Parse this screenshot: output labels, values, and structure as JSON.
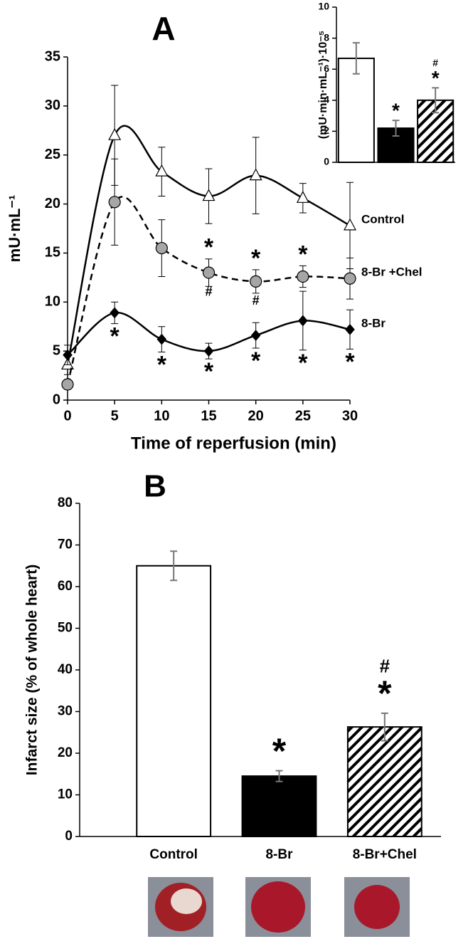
{
  "chart_data": [
    {
      "type": "line",
      "title": "A",
      "x_label": "Time of reperfusion (min)",
      "y_label": "mU·mL⁻¹",
      "x": [
        0,
        5,
        10,
        15,
        20,
        25,
        30
      ],
      "xlim": [
        0,
        30
      ],
      "xticks": [
        0,
        5,
        10,
        15,
        20,
        25,
        30
      ],
      "ylim": [
        0,
        35
      ],
      "yticks": [
        0,
        5,
        10,
        15,
        20,
        25,
        30,
        35
      ],
      "series": [
        {
          "name": "Control",
          "marker": "triangle",
          "color": "#ffffff",
          "dash": false,
          "values": [
            3.6,
            27,
            23.3,
            20.8,
            22.9,
            20.6,
            17.8
          ],
          "errors": [
            1,
            5.1,
            2.5,
            2.8,
            3.9,
            1.5,
            4.4
          ],
          "annotations_above": [
            null,
            null,
            null,
            null,
            null,
            null,
            null
          ],
          "annotations_below": [
            null,
            null,
            null,
            null,
            null,
            null,
            null
          ]
        },
        {
          "name": "8-Br +Chel",
          "marker": "circle",
          "color": "#a6a6a6",
          "dash": true,
          "values": [
            1.6,
            20.2,
            15.5,
            13.0,
            12.1,
            12.6,
            12.4
          ],
          "errors": [
            0.5,
            4.4,
            2.9,
            1.4,
            1.2,
            1.1,
            2.1
          ],
          "annotations_above": [
            null,
            null,
            null,
            "*",
            "*",
            "*",
            null
          ],
          "annotations_below": [
            null,
            null,
            null,
            "#",
            "#",
            null,
            null
          ]
        },
        {
          "name": "8-Br",
          "marker": "diamond",
          "color": "#000000",
          "dash": false,
          "values": [
            4.6,
            8.9,
            6.2,
            5.0,
            6.6,
            8.1,
            7.2
          ],
          "errors": [
            1,
            1.1,
            1.3,
            0.8,
            1.3,
            3.0,
            2.0
          ],
          "annotations_above": [
            null,
            null,
            null,
            null,
            null,
            null,
            null
          ],
          "annotations_below": [
            null,
            "*",
            "*",
            "*",
            "*",
            "*",
            "*"
          ]
        }
      ]
    },
    {
      "type": "bar",
      "y_label": "(mU·min·mL⁻¹)·10⁻⁵",
      "categories": [
        null,
        null,
        null
      ],
      "values": [
        6.7,
        2.2,
        4.0
      ],
      "errors": [
        1.0,
        0.5,
        0.8
      ],
      "colors": [
        "#ffffff",
        "#000000",
        "#ffffff"
      ],
      "hatch": [
        false,
        false,
        true
      ],
      "annotations": [
        [],
        [
          "*"
        ],
        [
          "*",
          "#"
        ]
      ],
      "ylim": [
        0,
        10
      ],
      "yticks": [
        0,
        2,
        4,
        6,
        8,
        10
      ]
    },
    {
      "type": "bar",
      "title": "B",
      "y_label": "Infarct size (% of whole heart)",
      "categories": [
        "Control",
        "8-Br",
        "8-Br+Chel"
      ],
      "values": [
        65,
        14.5,
        26.3
      ],
      "errors": [
        3.5,
        1.3,
        3.3
      ],
      "colors": [
        "#ffffff",
        "#000000",
        "#ffffff"
      ],
      "hatch": [
        false,
        false,
        true
      ],
      "annotations": [
        [],
        [
          "*"
        ],
        [
          "*",
          "#"
        ]
      ],
      "ylim": [
        0,
        80
      ],
      "yticks": [
        0,
        10,
        20,
        30,
        40,
        50,
        60,
        70,
        80
      ]
    }
  ]
}
